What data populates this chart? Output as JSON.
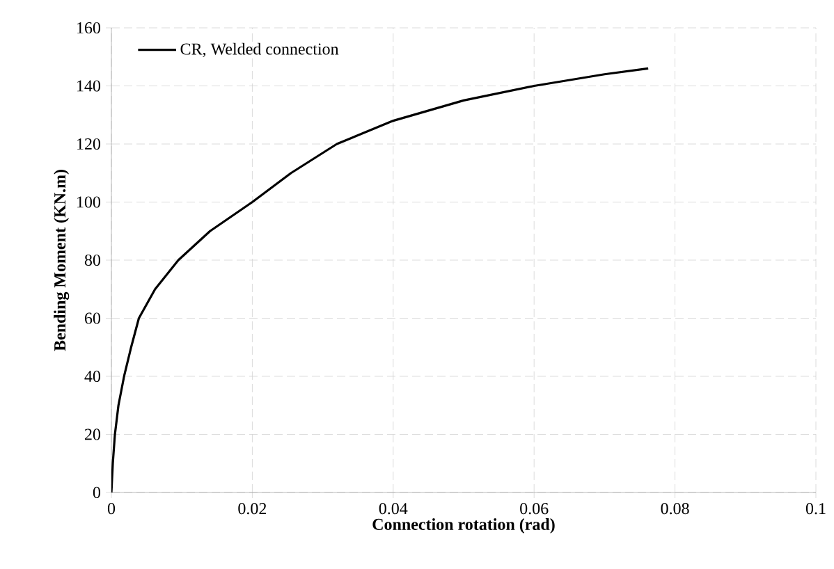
{
  "chart_data": {
    "type": "line",
    "xlabel": "Connection rotation (rad)",
    "ylabel": "Bending Moment (KN.m)",
    "xlim": [
      0,
      0.1
    ],
    "ylim": [
      0,
      160
    ],
    "xticks": [
      0,
      0.02,
      0.04,
      0.06,
      0.08,
      0.1
    ],
    "yticks": [
      0,
      20,
      40,
      60,
      80,
      100,
      120,
      140,
      160
    ],
    "grid": true,
    "legend": "top left",
    "line_style": "solid",
    "series": [
      {
        "name": "CR, Welded connection",
        "color": "#000000",
        "x": [
          0,
          0.0002,
          0.0005,
          0.001,
          0.0018,
          0.0028,
          0.0039,
          0.0062,
          0.0095,
          0.014,
          0.02,
          0.0255,
          0.032,
          0.04,
          0.05,
          0.06,
          0.07,
          0.0762
        ],
        "values": [
          0,
          10,
          20,
          30,
          40,
          50,
          60,
          70,
          80,
          90,
          100,
          110,
          120,
          128,
          135,
          140,
          144,
          146
        ]
      }
    ]
  }
}
